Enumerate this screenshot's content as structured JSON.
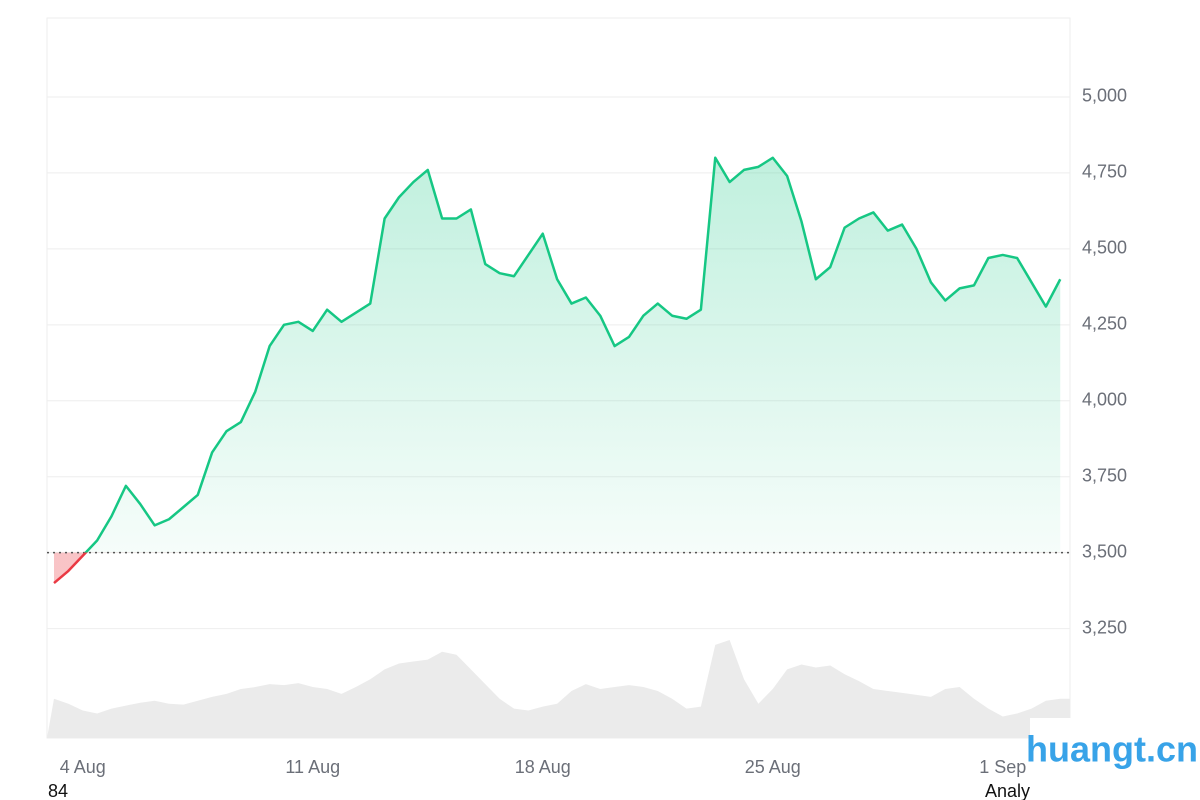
{
  "chart_data": {
    "type": "line",
    "categories": [
      null,
      null,
      "4 Aug",
      null,
      null,
      null,
      null,
      null,
      null,
      null,
      null,
      null,
      null,
      null,
      null,
      null,
      null,
      null,
      "11 Aug",
      null,
      null,
      null,
      null,
      null,
      null,
      null,
      null,
      null,
      null,
      null,
      null,
      null,
      null,
      null,
      "18 Aug",
      null,
      null,
      null,
      null,
      null,
      null,
      null,
      null,
      null,
      null,
      null,
      null,
      null,
      null,
      null,
      "25 Aug",
      null,
      null,
      null,
      null,
      null,
      null,
      null,
      null,
      null,
      null,
      null,
      null,
      null,
      null,
      null,
      "1 Sep",
      null,
      null,
      null,
      null
    ],
    "values": [
      3400,
      3440,
      3490,
      3540,
      3620,
      3720,
      3660,
      3590,
      3610,
      3650,
      3690,
      3830,
      3900,
      3930,
      4030,
      4180,
      4250,
      4260,
      4230,
      4300,
      4260,
      4290,
      4320,
      4600,
      4670,
      4720,
      4760,
      4600,
      4600,
      4630,
      4450,
      4420,
      4410,
      4480,
      4550,
      4400,
      4320,
      4340,
      4280,
      4180,
      4210,
      4280,
      4320,
      4280,
      4270,
      4300,
      4800,
      4720,
      4760,
      4770,
      4800,
      4740,
      4590,
      4400,
      4440,
      4570,
      4600,
      4620,
      4560,
      4580,
      4500,
      4390,
      4330,
      4370,
      4380,
      4470,
      4480,
      4470,
      4390,
      4310,
      4400
    ],
    "color": "#16c784",
    "down_color": "#ea3943",
    "baseline": 3500,
    "ylim": [
      2890,
      5260
    ],
    "yticks": [
      {
        "value": 3250,
        "label": "3,250"
      },
      {
        "value": 3500,
        "label": "3,500"
      },
      {
        "value": 3750,
        "label": "3,750"
      },
      {
        "value": 4000,
        "label": "4,000"
      },
      {
        "value": 4250,
        "label": "4,250"
      },
      {
        "value": 4500,
        "label": "4,500"
      },
      {
        "value": 4750,
        "label": "4,750"
      },
      {
        "value": 5000,
        "label": "5,000"
      }
    ],
    "grid": true,
    "volume": {
      "color": "#ebebeb",
      "vlim": [
        0,
        100
      ],
      "values": [
        40,
        35,
        28,
        25,
        30,
        33,
        36,
        38,
        35,
        34,
        38,
        42,
        45,
        50,
        52,
        55,
        54,
        56,
        52,
        50,
        45,
        52,
        60,
        70,
        76,
        78,
        80,
        88,
        85,
        70,
        55,
        40,
        30,
        28,
        32,
        35,
        48,
        55,
        50,
        52,
        54,
        52,
        48,
        40,
        30,
        32,
        95,
        100,
        60,
        35,
        50,
        70,
        75,
        72,
        74,
        65,
        58,
        50,
        48,
        46,
        44,
        42,
        50,
        52,
        40,
        30,
        22,
        25,
        30,
        38,
        40
      ]
    },
    "footer_left": "84",
    "footer_right": "Analyze"
  },
  "watermark": "huangt.cn"
}
